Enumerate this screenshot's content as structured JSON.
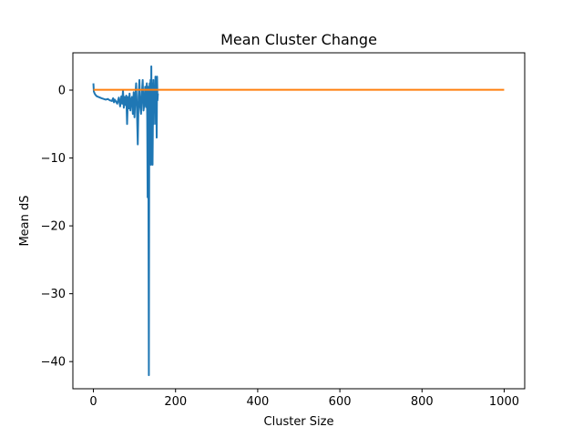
{
  "chart_data": {
    "type": "line",
    "title": "Mean Cluster Change",
    "xlabel": "Cluster Size",
    "ylabel": "Mean dS",
    "xlim": [
      -50,
      1050
    ],
    "ylim": [
      -44,
      5.5
    ],
    "xticks": [
      0,
      200,
      400,
      600,
      800,
      1000
    ],
    "xtick_labels": [
      "0",
      "200",
      "400",
      "600",
      "800",
      "1000"
    ],
    "yticks": [
      0,
      -10,
      -20,
      -30,
      -40
    ],
    "ytick_labels": [
      "0",
      "−10",
      "−20",
      "−30",
      "−40"
    ],
    "grid": false,
    "legend": "none",
    "series": [
      {
        "color": "#1f77b4",
        "x": [
          0,
          1,
          3,
          5,
          8,
          12,
          16,
          20,
          25,
          30,
          35,
          40,
          45,
          48,
          50,
          52,
          55,
          58,
          60,
          62,
          65,
          68,
          70,
          72,
          74,
          76,
          78,
          80,
          82,
          84,
          86,
          88,
          90,
          92,
          94,
          96,
          98,
          100,
          102,
          104,
          106,
          108,
          110,
          112,
          114,
          116,
          118,
          120,
          122,
          124,
          126,
          128,
          130,
          131,
          132,
          133,
          134,
          135,
          136,
          137,
          138,
          139,
          140,
          141,
          142,
          143,
          144,
          145,
          146,
          147,
          148,
          149,
          150,
          151,
          152,
          153,
          154,
          155,
          156,
          157
        ],
        "y": [
          1.0,
          -0.2,
          -0.5,
          -0.7,
          -0.9,
          -1.0,
          -1.1,
          -1.2,
          -1.3,
          -1.4,
          -1.3,
          -1.5,
          -1.6,
          -1.2,
          -1.8,
          -1.4,
          -1.7,
          -2.0,
          -1.5,
          -1.1,
          -2.4,
          -0.9,
          -2.0,
          0.0,
          -2.6,
          -1.0,
          -2.2,
          -0.8,
          -5.0,
          -1.0,
          -2.7,
          -0.5,
          -3.0,
          -1.4,
          -1.0,
          -3.5,
          -0.3,
          -4.0,
          -1.0,
          1.0,
          -3.0,
          -8.0,
          -1.0,
          1.5,
          -2.5,
          -3.5,
          -0.5,
          1.5,
          -3.0,
          -2.0,
          0.5,
          -2.5,
          1.0,
          -4.0,
          -15.8,
          0.5,
          -16.2,
          -42.0,
          -3.0,
          1.0,
          -5.0,
          1.5,
          -11.0,
          3.5,
          -7.0,
          1.0,
          -11.0,
          -3.0,
          1.5,
          -5.0,
          0.5,
          -2.5,
          -1.0,
          2.0,
          -5.0,
          0.0,
          -7.0,
          2.0,
          -1.5,
          -0.5
        ]
      },
      {
        "color": "#ff7f0e",
        "x": [
          0,
          1000
        ],
        "y": [
          0.05,
          0.05
        ]
      }
    ]
  }
}
